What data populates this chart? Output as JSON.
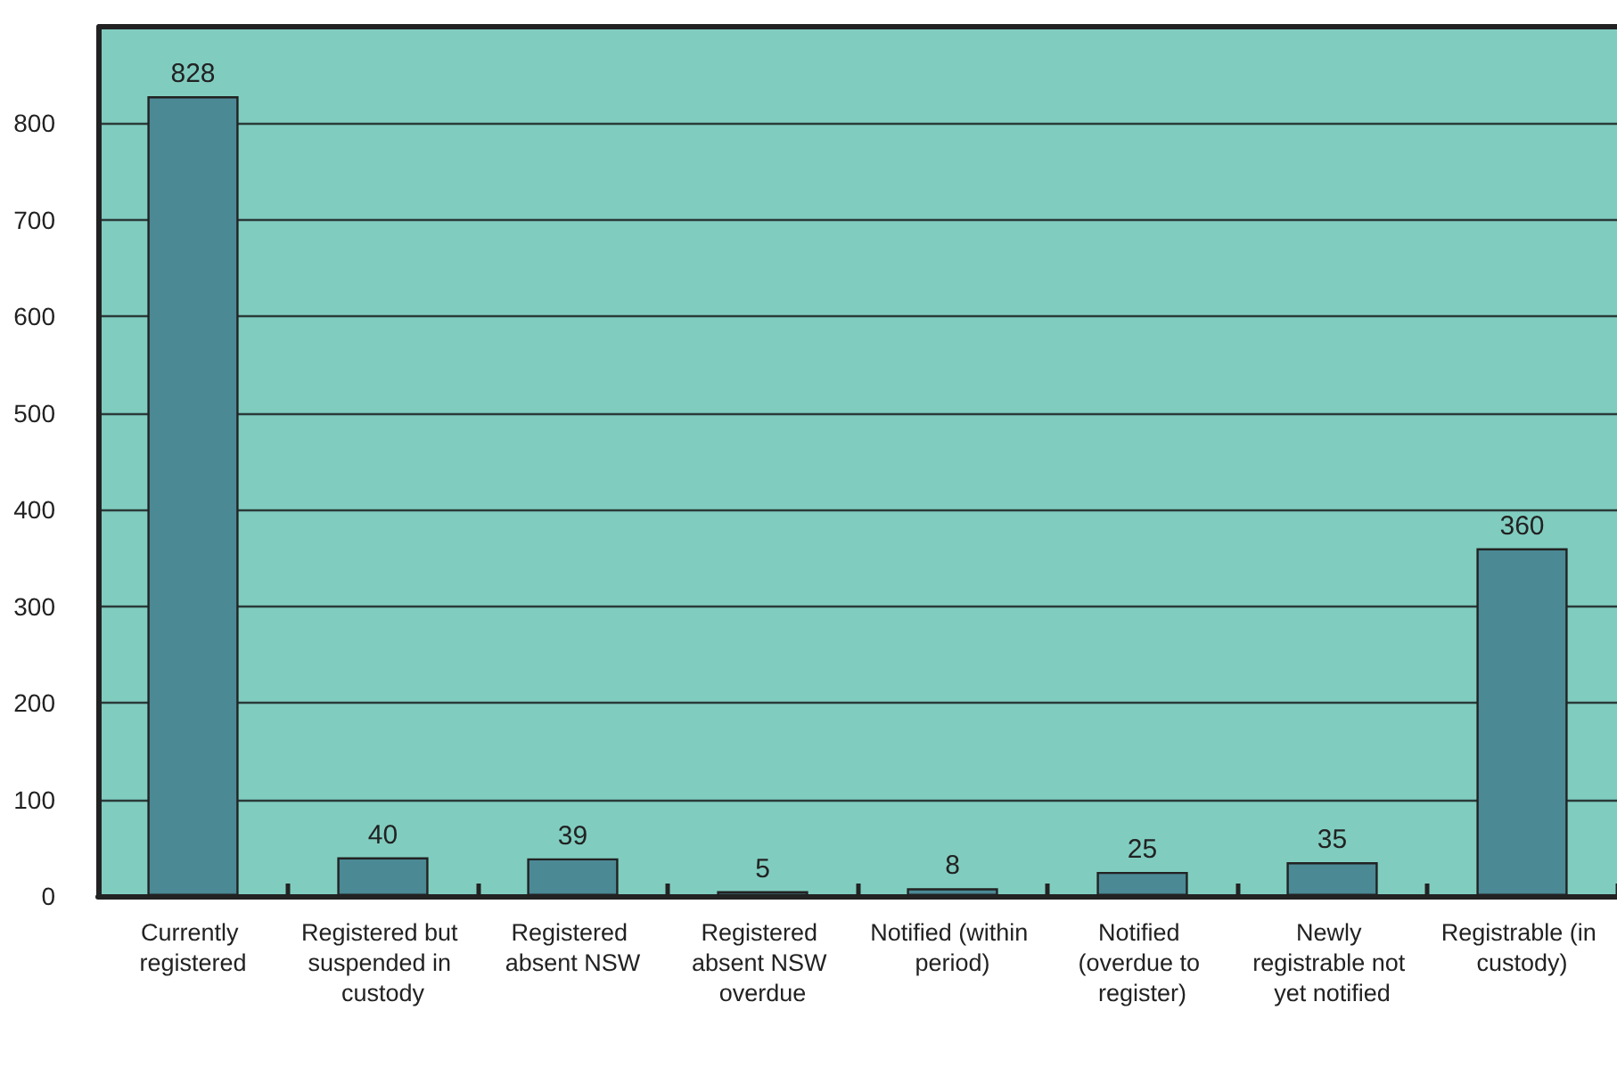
{
  "chart_data": {
    "type": "bar",
    "categories": [
      "Currently registered",
      "Registered but suspended in custody",
      "Registered absent NSW",
      "Registered absent NSW overdue",
      "Notified (within period)",
      "Notified (overdue to register)",
      "Newly registrable not yet notified",
      "Registrable (in custody)"
    ],
    "values": [
      828,
      40,
      39,
      5,
      8,
      25,
      35,
      360
    ],
    "color": "#4b8995",
    "ylim": [
      0,
      900
    ],
    "yticks": [
      0,
      100,
      200,
      300,
      400,
      500,
      600,
      700,
      800
    ],
    "grid": "y",
    "data_labels": true
  }
}
